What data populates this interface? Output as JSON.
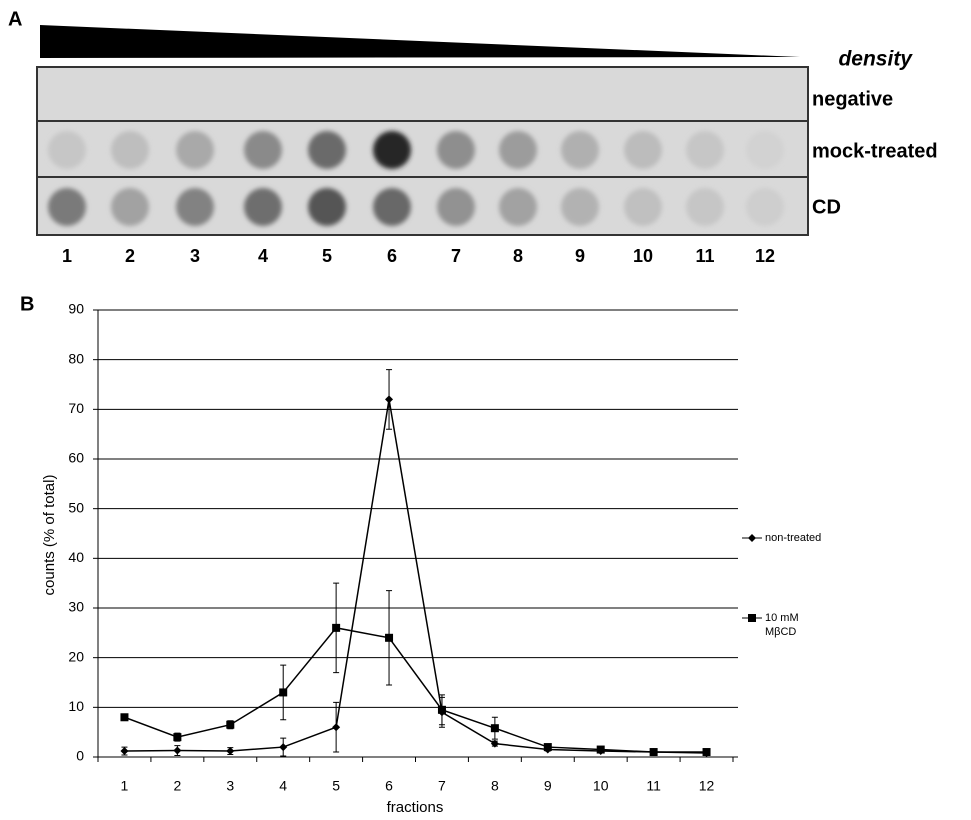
{
  "panel_a": {
    "label": "A",
    "gradient_label": "density",
    "rows": [
      {
        "label": "negative"
      },
      {
        "label": "mock-treated",
        "dot_colors": [
          "#c6c6c6",
          "#bebebe",
          "#a9a9a9",
          "#8a8a8a",
          "#6a6a6a",
          "#262626",
          "#8e8e8e",
          "#9c9c9c",
          "#b0b0b0",
          "#bcbcbc",
          "#c6c6c6",
          "#d2d2d2"
        ]
      },
      {
        "label": "CD",
        "dot_colors": [
          "#7a7a7a",
          "#a2a2a2",
          "#828282",
          "#6e6e6e",
          "#545454",
          "#676767",
          "#929292",
          "#a2a2a2",
          "#b2b2b2",
          "#c0c0c0",
          "#c6c6c6",
          "#cecece"
        ]
      }
    ],
    "lanes": [
      "1",
      "2",
      "3",
      "4",
      "5",
      "6",
      "7",
      "8",
      "9",
      "10",
      "11",
      "12"
    ]
  },
  "chart_data": {
    "type": "line",
    "panel_label": "B",
    "x_label": "fractions",
    "y_label": "counts (% of total)",
    "categories": [
      "1",
      "2",
      "3",
      "4",
      "5",
      "6",
      "7",
      "8",
      "9",
      "10",
      "11",
      "12"
    ],
    "series": [
      {
        "name": "non-treated",
        "color": "#000000",
        "marker": "diamond",
        "values": [
          1.2,
          1.3,
          1.2,
          2,
          6,
          72,
          9,
          2.7,
          1.5,
          1.2,
          1,
          0.8
        ],
        "errors": [
          0.8,
          1,
          0.7,
          1.8,
          5,
          6,
          3,
          0.5,
          0.3,
          0.3,
          0.2,
          0.2
        ]
      },
      {
        "name": "10 mM MβCD",
        "color": "#000000",
        "marker": "square",
        "values": [
          8,
          4,
          6.5,
          13,
          26,
          24,
          9.5,
          5.8,
          2,
          1.5,
          1,
          1
        ],
        "errors": [
          0.5,
          0.8,
          0.8,
          5.5,
          9,
          9.5,
          3,
          2.2,
          0.3,
          0.3,
          0.2,
          0.3
        ]
      }
    ],
    "ylim": [
      0,
      90
    ],
    "yticks": [
      0,
      10,
      20,
      30,
      40,
      50,
      60,
      70,
      80,
      90
    ],
    "grid": true,
    "legend": "right"
  }
}
